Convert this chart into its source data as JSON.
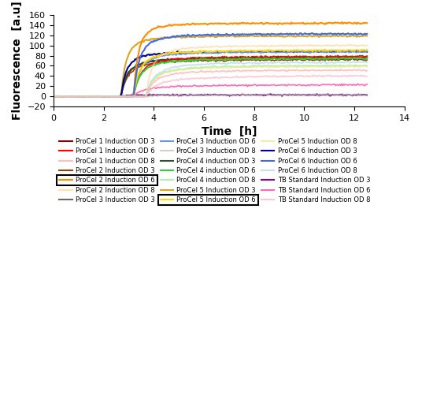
{
  "title": "",
  "xlabel": "Time  [h]",
  "ylabel": "Fluorescence  [a.u]",
  "xlim": [
    0,
    14
  ],
  "ylim": [
    -20,
    160
  ],
  "xticks": [
    0,
    2,
    4,
    6,
    8,
    10,
    12,
    14
  ],
  "yticks": [
    -20,
    0,
    20,
    40,
    60,
    80,
    100,
    120,
    140,
    160
  ],
  "series": [
    {
      "label": "ProCel 1 Induction OD 3",
      "color": "#8B0000",
      "alpha": 1.0,
      "lw": 1.2,
      "t_induct": 2.7,
      "y_final": 80,
      "rise_rate": 3.5,
      "od_group": "OD3",
      "boxed": false
    },
    {
      "label": "ProCel 2 Induction OD 3",
      "color": "#8B4513",
      "alpha": 1.0,
      "lw": 1.2,
      "t_induct": 2.7,
      "y_final": 75,
      "rise_rate": 3.5,
      "od_group": "OD3",
      "boxed": false
    },
    {
      "label": "ProCel 3 Induction OD 3",
      "color": "#696969",
      "alpha": 1.0,
      "lw": 1.2,
      "t_induct": 2.7,
      "y_final": 3,
      "rise_rate": 3.0,
      "od_group": "OD3",
      "boxed": false
    },
    {
      "label": "ProCel 4 induction OD 3",
      "color": "#2F4F2F",
      "alpha": 1.0,
      "lw": 1.5,
      "t_induct": 2.7,
      "y_final": 78,
      "rise_rate": 4.0,
      "od_group": "OD3",
      "boxed": false
    },
    {
      "label": "ProCel 5 Induction OD 3",
      "color": "#DAA520",
      "alpha": 1.0,
      "lw": 1.5,
      "t_induct": 2.7,
      "y_final": 120,
      "rise_rate": 5.0,
      "od_group": "OD3",
      "boxed": false
    },
    {
      "label": "ProCel 6 Induction OD 3",
      "color": "#00008B",
      "alpha": 1.0,
      "lw": 1.5,
      "t_induct": 2.7,
      "y_final": 90,
      "rise_rate": 4.5,
      "od_group": "OD3",
      "boxed": false
    },
    {
      "label": "TB Standard Induction OD 3",
      "color": "#8B008B",
      "alpha": 1.0,
      "lw": 1.2,
      "t_induct": 2.7,
      "y_final": 3,
      "rise_rate": 2.5,
      "od_group": "OD3",
      "boxed": false
    },
    {
      "label": "ProCel 1 Induction OD 6",
      "color": "#FF0000",
      "alpha": 1.0,
      "lw": 1.2,
      "t_induct": 3.2,
      "y_final": 82,
      "rise_rate": 3.5,
      "od_group": "OD6",
      "boxed": false
    },
    {
      "label": "ProCel 2 Induction OD 6",
      "color": "#FF8C00",
      "alpha": 1.0,
      "lw": 1.5,
      "t_induct": 3.2,
      "y_final": 145,
      "rise_rate": 5.5,
      "od_group": "OD6",
      "boxed": true
    },
    {
      "label": "ProCel 3 Induction OD 6",
      "color": "#6495ED",
      "alpha": 1.0,
      "lw": 1.2,
      "t_induct": 3.2,
      "y_final": 90,
      "rise_rate": 4.0,
      "od_group": "OD6",
      "boxed": false
    },
    {
      "label": "ProCel 4 induction OD 6",
      "color": "#32CD32",
      "alpha": 1.0,
      "lw": 1.5,
      "t_induct": 3.2,
      "y_final": 78,
      "rise_rate": 3.5,
      "od_group": "OD6",
      "boxed": false
    },
    {
      "label": "ProCel 5 Induction OD 6",
      "color": "#FFD700",
      "alpha": 1.0,
      "lw": 1.5,
      "t_induct": 3.2,
      "y_final": 93,
      "rise_rate": 4.0,
      "od_group": "OD6",
      "boxed": true
    },
    {
      "label": "ProCel 6 Induction OD 6",
      "color": "#4169E1",
      "alpha": 1.0,
      "lw": 1.5,
      "t_induct": 3.2,
      "y_final": 125,
      "rise_rate": 4.5,
      "od_group": "OD6",
      "boxed": false
    },
    {
      "label": "TB Standard Induction OD 6",
      "color": "#FF69B4",
      "alpha": 1.0,
      "lw": 1.2,
      "t_induct": 3.2,
      "y_final": 27,
      "rise_rate": 2.0,
      "od_group": "OD6",
      "boxed": false
    },
    {
      "label": "ProCel 1 Induction OD 8",
      "color": "#FFAAAA",
      "alpha": 0.75,
      "lw": 1.2,
      "t_induct": 3.7,
      "y_final": 55,
      "rise_rate": 3.0,
      "od_group": "OD8",
      "boxed": false
    },
    {
      "label": "ProCel 2 Induction OD 8",
      "color": "#FFD59A",
      "alpha": 0.75,
      "lw": 1.2,
      "t_induct": 3.7,
      "y_final": 103,
      "rise_rate": 4.0,
      "od_group": "OD8",
      "boxed": false
    },
    {
      "label": "ProCel 3 Induction OD 8",
      "color": "#C0C0C0",
      "alpha": 0.75,
      "lw": 1.2,
      "t_induct": 3.7,
      "y_final": 3,
      "rise_rate": 2.5,
      "od_group": "OD8",
      "boxed": false
    },
    {
      "label": "ProCel 4 induction OD 8",
      "color": "#90EE90",
      "alpha": 0.75,
      "lw": 1.2,
      "t_induct": 3.7,
      "y_final": 65,
      "rise_rate": 3.0,
      "od_group": "OD8",
      "boxed": false
    },
    {
      "label": "ProCel 5 Induction OD 8",
      "color": "#F0E68C",
      "alpha": 0.75,
      "lw": 1.2,
      "t_induct": 3.7,
      "y_final": 63,
      "rise_rate": 3.0,
      "od_group": "OD8",
      "boxed": false
    },
    {
      "label": "ProCel 6 Induction OD 8",
      "color": "#ADD8E6",
      "alpha": 0.75,
      "lw": 1.2,
      "t_induct": 3.7,
      "y_final": 72,
      "rise_rate": 3.0,
      "od_group": "OD8",
      "boxed": false
    },
    {
      "label": "TB Standard Induction OD 8",
      "color": "#FFB6C1",
      "alpha": 0.75,
      "lw": 1.2,
      "t_induct": 3.7,
      "y_final": 48,
      "rise_rate": 2.0,
      "od_group": "OD8",
      "boxed": false
    }
  ]
}
